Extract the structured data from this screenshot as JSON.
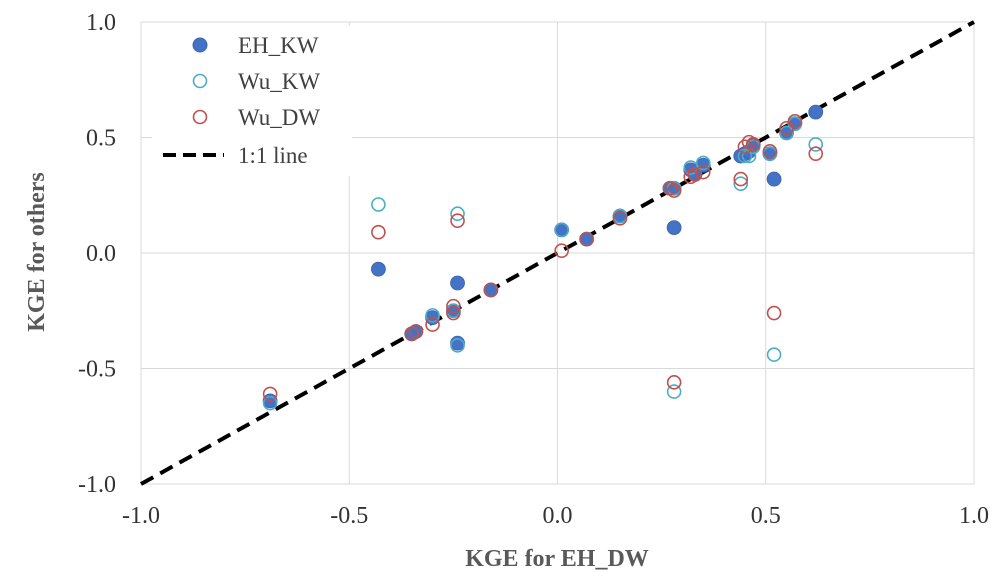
{
  "chart_data": {
    "type": "scatter",
    "xlabel": "KGE for EH_DW",
    "ylabel": "KGE for others",
    "xlim": [
      -1.0,
      1.0
    ],
    "ylim": [
      -1.0,
      1.0
    ],
    "x_ticks": [
      "-1.0",
      "-0.5",
      "0.0",
      "0.5",
      "1.0"
    ],
    "y_ticks": [
      "1.0",
      "0.5",
      "0.0",
      "-0.5",
      "-1.0"
    ],
    "grid": true,
    "legend_position": "top-left",
    "colors": {
      "eh_kw": "#4472C4",
      "wu_kw": "#4BACC6",
      "wu_dw": "#C0504D",
      "line": "#000000",
      "grid": "#d9d9d9"
    },
    "series": [
      {
        "name": "EH_KW",
        "marker": "filled-circle",
        "points": [
          [
            -0.69,
            -0.64
          ],
          [
            -0.43,
            -0.07
          ],
          [
            -0.35,
            -0.35
          ],
          [
            -0.34,
            -0.34
          ],
          [
            -0.3,
            -0.28
          ],
          [
            -0.25,
            -0.25
          ],
          [
            -0.24,
            -0.13
          ],
          [
            -0.24,
            -0.39
          ],
          [
            -0.16,
            -0.16
          ],
          [
            0.01,
            0.1
          ],
          [
            0.07,
            0.06
          ],
          [
            0.15,
            0.16
          ],
          [
            0.27,
            0.28
          ],
          [
            0.28,
            0.28
          ],
          [
            0.28,
            0.11
          ],
          [
            0.32,
            0.36
          ],
          [
            0.33,
            0.34
          ],
          [
            0.35,
            0.38
          ],
          [
            0.44,
            0.42
          ],
          [
            0.45,
            0.43
          ],
          [
            0.46,
            0.44
          ],
          [
            0.47,
            0.47
          ],
          [
            0.51,
            0.43
          ],
          [
            0.52,
            0.32
          ],
          [
            0.55,
            0.52
          ],
          [
            0.57,
            0.56
          ],
          [
            0.62,
            0.61
          ]
        ]
      },
      {
        "name": "Wu_KW",
        "marker": "open-circle",
        "points": [
          [
            -0.69,
            -0.65
          ],
          [
            -0.43,
            0.21
          ],
          [
            -0.35,
            -0.35
          ],
          [
            -0.34,
            -0.34
          ],
          [
            -0.3,
            -0.27
          ],
          [
            -0.25,
            -0.25
          ],
          [
            -0.24,
            0.17
          ],
          [
            -0.24,
            -0.4
          ],
          [
            -0.16,
            -0.16
          ],
          [
            0.01,
            0.1
          ],
          [
            0.07,
            0.06
          ],
          [
            0.15,
            0.16
          ],
          [
            0.27,
            0.28
          ],
          [
            0.28,
            0.28
          ],
          [
            0.28,
            -0.6
          ],
          [
            0.32,
            0.37
          ],
          [
            0.33,
            0.34
          ],
          [
            0.35,
            0.39
          ],
          [
            0.44,
            0.3
          ],
          [
            0.45,
            0.42
          ],
          [
            0.46,
            0.42
          ],
          [
            0.47,
            0.46
          ],
          [
            0.51,
            0.43
          ],
          [
            0.52,
            -0.44
          ],
          [
            0.55,
            0.52
          ],
          [
            0.57,
            0.56
          ],
          [
            0.62,
            0.47
          ]
        ]
      },
      {
        "name": "Wu_DW",
        "marker": "open-circle",
        "points": [
          [
            -0.69,
            -0.61
          ],
          [
            -0.43,
            0.09
          ],
          [
            -0.35,
            -0.35
          ],
          [
            -0.34,
            -0.34
          ],
          [
            -0.3,
            -0.31
          ],
          [
            -0.25,
            -0.23
          ],
          [
            -0.24,
            0.14
          ],
          [
            -0.25,
            -0.26
          ],
          [
            -0.16,
            -0.16
          ],
          [
            0.01,
            0.01
          ],
          [
            0.07,
            0.06
          ],
          [
            0.15,
            0.15
          ],
          [
            0.27,
            0.28
          ],
          [
            0.28,
            0.27
          ],
          [
            0.28,
            -0.56
          ],
          [
            0.32,
            0.33
          ],
          [
            0.33,
            0.34
          ],
          [
            0.35,
            0.35
          ],
          [
            0.44,
            0.32
          ],
          [
            0.45,
            0.46
          ],
          [
            0.46,
            0.48
          ],
          [
            0.47,
            0.47
          ],
          [
            0.51,
            0.44
          ],
          [
            0.52,
            -0.26
          ],
          [
            0.55,
            0.54
          ],
          [
            0.57,
            0.57
          ],
          [
            0.62,
            0.43
          ]
        ]
      }
    ],
    "reference_line": {
      "name": "1:1 line",
      "from": [
        -1.0,
        -1.0
      ],
      "to": [
        1.0,
        1.0
      ],
      "style": "dashed"
    }
  }
}
